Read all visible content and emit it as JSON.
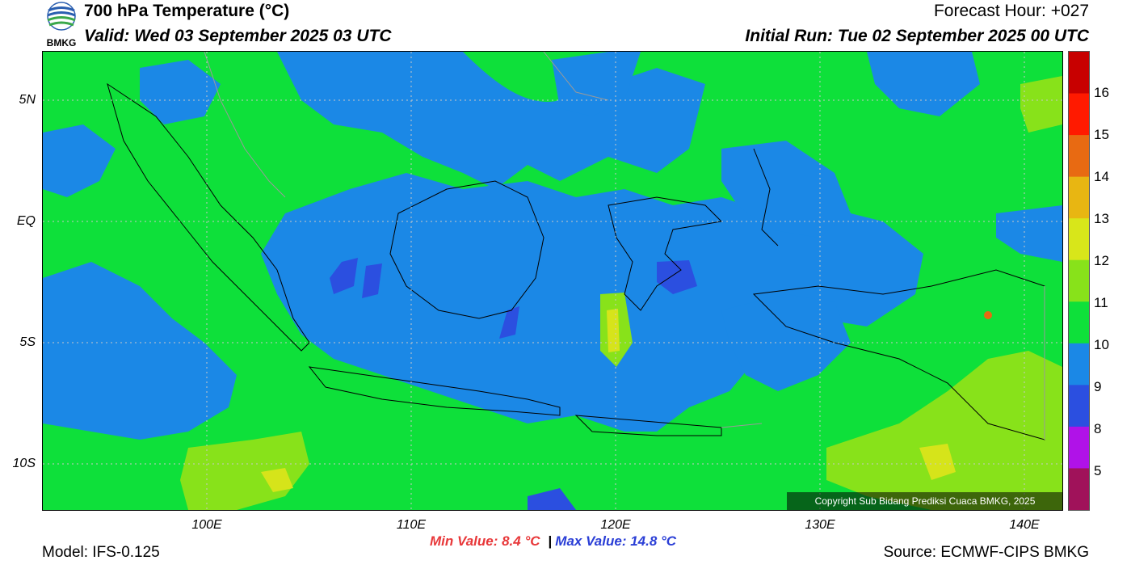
{
  "header": {
    "title": "700 hPa Temperature (°C)",
    "valid": "Valid: Wed 03 September 2025 03 UTC",
    "forecast_hour": "Forecast Hour: +027",
    "initial_run": "Initial Run: Tue 02 September 2025 00 UTC",
    "logo_text": "BMKG"
  },
  "map": {
    "lat_labels": [
      "5N",
      "EQ",
      "5S",
      "10S"
    ],
    "lon_labels": [
      "100E",
      "110E",
      "120E",
      "130E",
      "140E"
    ],
    "copyright": "Copyright Sub Bidang Prediksi Cuaca BMKG, 2025",
    "colors": {
      "ocean_base": "#0ee03a",
      "cool_band": "#1b88e6",
      "coldest": "#2b4fe0",
      "warm": "#88e21a",
      "warmest": "#d6e41a",
      "coastline": "#000000",
      "border": "#9a9a9a"
    }
  },
  "colorbar": {
    "labels": [
      "16",
      "15",
      "14",
      "13",
      "12",
      "11",
      "10",
      "9",
      "8",
      "5"
    ],
    "colors": [
      "#c80000",
      "#ff1a00",
      "#e86a12",
      "#e8b612",
      "#d8e61a",
      "#88e21a",
      "#0ee03a",
      "#1b88e6",
      "#2b4fe0",
      "#b012e8",
      "#a0125a"
    ]
  },
  "stats": {
    "min_label": "Min Value: 8.4 °C",
    "max_label": "Max Value: 14.8 °C",
    "separator": "|"
  },
  "footer": {
    "model": "Model: IFS-0.125",
    "source": "Source: ECMWF-CIPS BMKG"
  }
}
